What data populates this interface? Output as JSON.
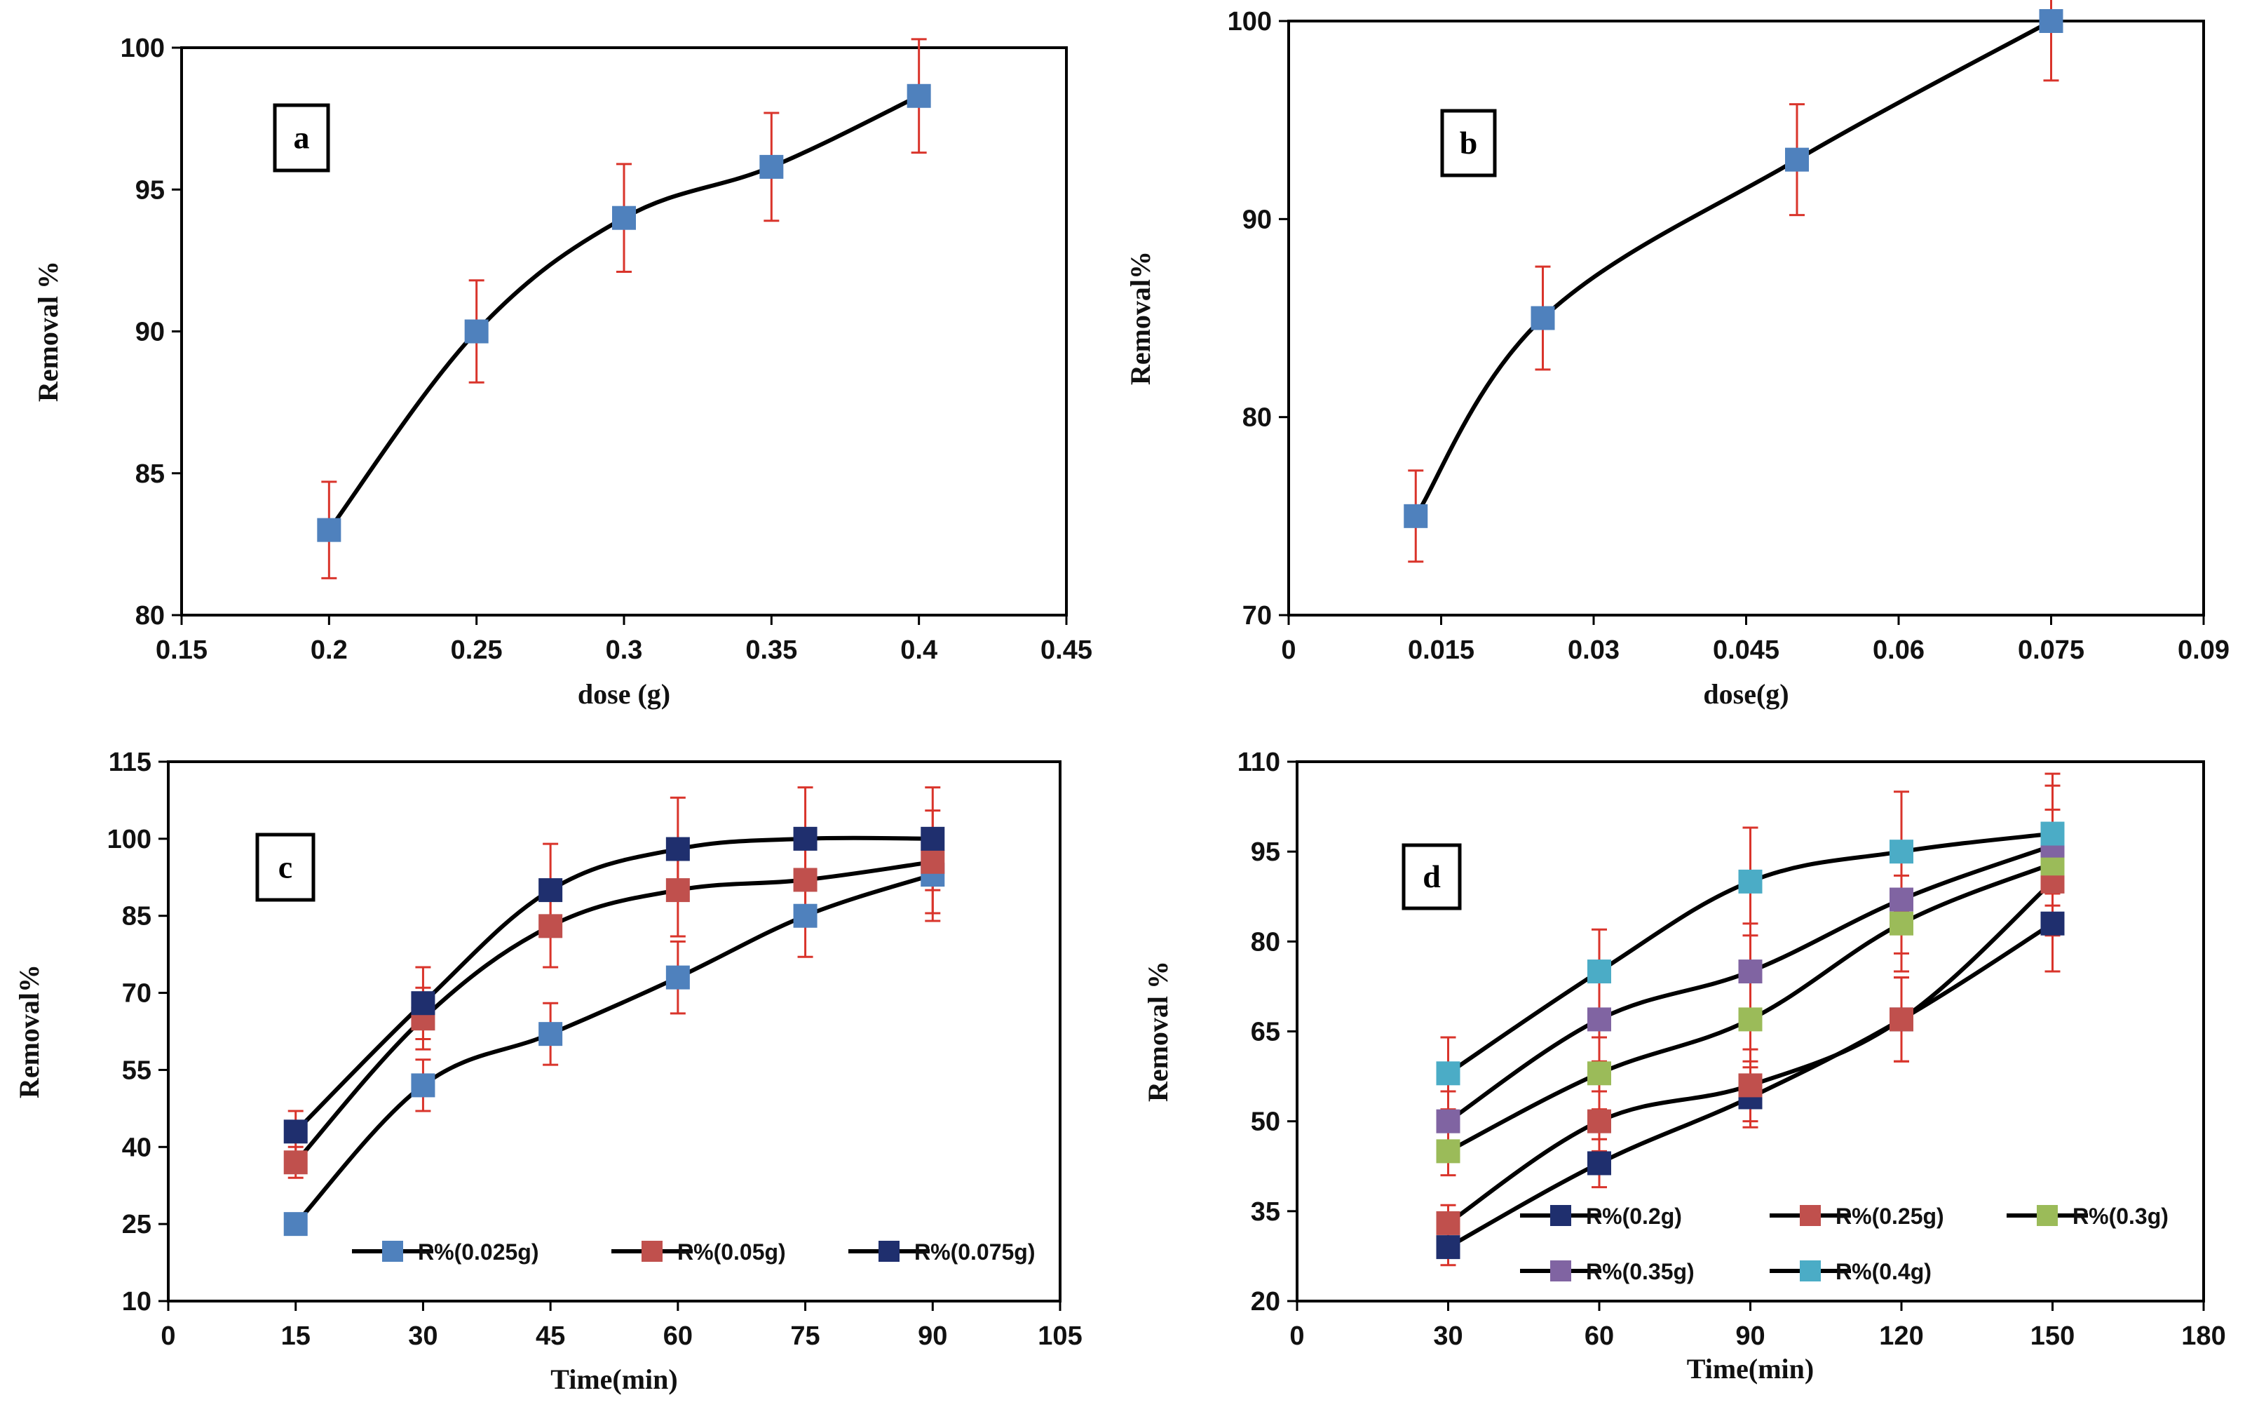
{
  "colors": {
    "line": "#000000",
    "error": "#d9342b",
    "light_blue": "#4f81bd",
    "red": "#c0504d",
    "green": "#9bbb59",
    "purple": "#8064a2",
    "cyan": "#4bacc6",
    "navy": "#1f2f6e"
  },
  "chart_data": [
    {
      "panel": "a",
      "type": "line",
      "xlabel": "dose (g)",
      "ylabel": "Removal %",
      "xlim": [
        0.15,
        0.45
      ],
      "ylim": [
        80,
        100
      ],
      "xticks": [
        "0.15",
        "0.2",
        "0.25",
        "0.3",
        "0.35",
        "0.4",
        "0.45"
      ],
      "yticks": [
        "80",
        "85",
        "90",
        "95",
        "100"
      ],
      "series": [
        {
          "name": "",
          "color": "light_blue",
          "x": [
            0.2,
            0.25,
            0.3,
            0.35,
            0.4
          ],
          "values": [
            83,
            90,
            94,
            95.8,
            98.3
          ],
          "errors": [
            1.7,
            1.8,
            1.9,
            1.9,
            2.0
          ]
        }
      ]
    },
    {
      "panel": "b",
      "type": "line",
      "xlabel": "dose(g)",
      "ylabel": "Removal%",
      "xlim": [
        0,
        0.09
      ],
      "ylim": [
        70,
        100
      ],
      "xticks": [
        "0",
        "0.015",
        "0.03",
        "0.045",
        "0.06",
        "0.075",
        "0.09"
      ],
      "yticks": [
        "70",
        "80",
        "90",
        "100"
      ],
      "series": [
        {
          "name": "",
          "color": "light_blue",
          "x": [
            0.0125,
            0.025,
            0.05,
            0.075
          ],
          "values": [
            75,
            85,
            93,
            100
          ],
          "errors": [
            2.3,
            2.6,
            2.8,
            3.0
          ]
        }
      ]
    },
    {
      "panel": "c",
      "type": "line",
      "xlabel": "Time(min)",
      "ylabel": "Removal%",
      "xlim": [
        0,
        105
      ],
      "ylim": [
        10,
        115
      ],
      "xticks": [
        "0",
        "15",
        "30",
        "45",
        "60",
        "75",
        "90",
        "105"
      ],
      "yticks": [
        "10",
        "25",
        "40",
        "55",
        "70",
        "85",
        "100",
        "115"
      ],
      "legend_position": "bottom",
      "series": [
        {
          "name": "R%(0.025g)",
          "color": "light_blue",
          "x": [
            15,
            30,
            45,
            60,
            75,
            90
          ],
          "values": [
            25,
            52,
            62,
            73,
            85,
            93
          ],
          "errors": [
            2,
            5,
            6,
            7,
            8,
            9
          ]
        },
        {
          "name": "R%(0.05g)",
          "color": "red",
          "x": [
            15,
            30,
            45,
            60,
            75,
            90
          ],
          "values": [
            37,
            65,
            83,
            90,
            92,
            95.5
          ],
          "errors": [
            3,
            6,
            8,
            9,
            9,
            10
          ]
        },
        {
          "name": "R%(0.075g)",
          "color": "navy",
          "x": [
            15,
            30,
            45,
            60,
            75,
            90
          ],
          "values": [
            43,
            68,
            90,
            98,
            100,
            100
          ],
          "errors": [
            4,
            7,
            9,
            10,
            10,
            10
          ]
        }
      ]
    },
    {
      "panel": "d",
      "type": "line",
      "xlabel": "Time(min)",
      "ylabel": "Removal %",
      "xlim": [
        0,
        180
      ],
      "ylim": [
        20,
        110
      ],
      "xticks": [
        "0",
        "30",
        "60",
        "90",
        "120",
        "150",
        "180"
      ],
      "yticks": [
        "20",
        "35",
        "50",
        "65",
        "80",
        "95",
        "110"
      ],
      "legend_position": "bottom",
      "series": [
        {
          "name": "R%(0.2g)",
          "color": "navy",
          "x": [
            30,
            60,
            90,
            120,
            150
          ],
          "values": [
            29,
            43,
            54,
            67,
            83
          ],
          "errors": [
            3,
            4,
            5,
            7,
            8
          ]
        },
        {
          "name": "R%(0.25g)",
          "color": "red",
          "x": [
            30,
            60,
            90,
            120,
            150
          ],
          "values": [
            33,
            50,
            56,
            67,
            90
          ],
          "errors": [
            3,
            5,
            6,
            7,
            9
          ]
        },
        {
          "name": "R%(0.3g)",
          "color": "green",
          "x": [
            30,
            60,
            90,
            120,
            150
          ],
          "values": [
            45,
            58,
            67,
            83,
            93
          ],
          "errors": [
            4,
            6,
            7,
            8,
            9
          ]
        },
        {
          "name": "R%(0.35g)",
          "color": "purple",
          "x": [
            30,
            60,
            90,
            120,
            150
          ],
          "values": [
            50,
            67,
            75,
            87,
            96
          ],
          "errors": [
            5,
            7,
            8,
            9,
            10
          ]
        },
        {
          "name": "R%(0.4g)",
          "color": "cyan",
          "x": [
            30,
            60,
            90,
            120,
            150
          ],
          "values": [
            58,
            75,
            90,
            95,
            98
          ],
          "errors": [
            6,
            7,
            9,
            10,
            10
          ]
        }
      ]
    }
  ]
}
